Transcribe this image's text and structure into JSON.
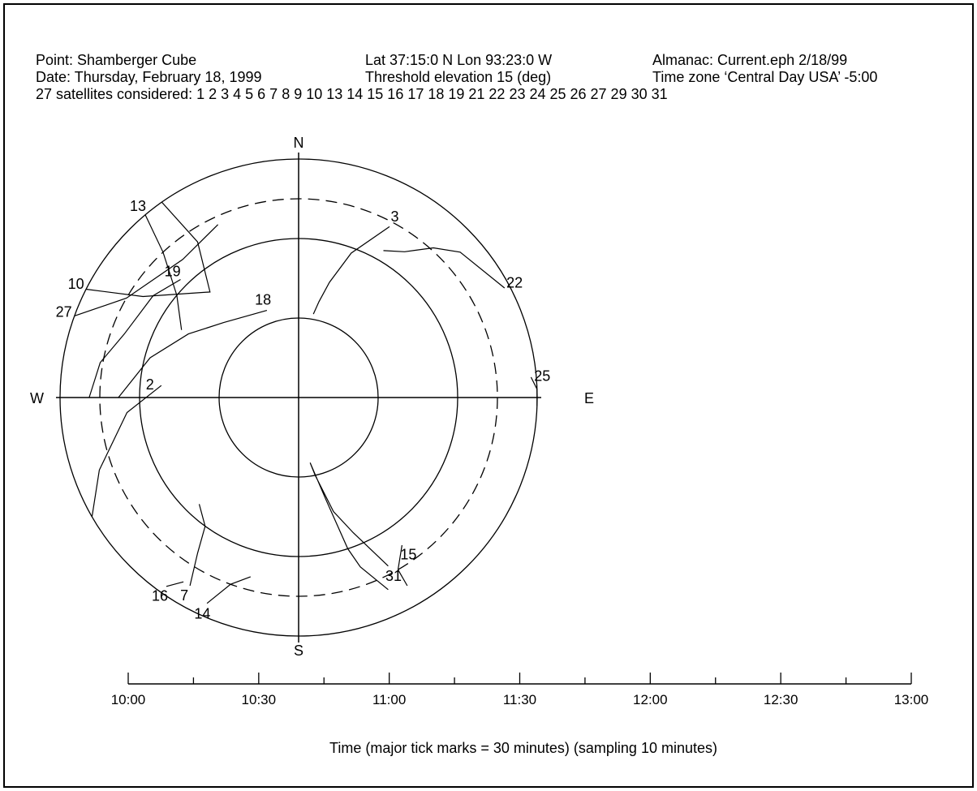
{
  "header": {
    "point": "Point: Shamberger Cube",
    "latlon": "Lat 37:15:0 N Lon 93:23:0 W",
    "almanac": "Almanac: Current.eph 2/18/99",
    "date": "Date: Thursday, February 18, 1999",
    "threshold": "Threshold elevation 15 (deg)",
    "timezone": "Time zone ‘Central Day USA’ -5:00",
    "satellites": "27 satellites considered: 1 2 3 4 5 6 7 8 9 10 13 14 15 16 17 18 19 21 22 23 24 25 26 27 29 30 31"
  },
  "chart_data": [
    {
      "type": "polar-skyplot",
      "directions": {
        "north": "N",
        "south": "S",
        "west": "W",
        "east": "E"
      },
      "elevation_rings": [
        0,
        30,
        60
      ],
      "threshold_ring_deg": 15,
      "satellites": [
        {
          "label": "3",
          "path": [
            [
              28,
              17
            ],
            [
              20,
              32
            ],
            [
              15,
              45
            ],
            [
              12,
              53
            ],
            [
              10,
              58
            ]
          ]
        },
        {
          "label": "22",
          "path": [
            [
              62,
              2
            ],
            [
              48,
              8
            ],
            [
              42,
              14
            ],
            [
              36,
              22
            ],
            [
              30,
              26
            ]
          ]
        },
        {
          "label": "31",
          "path": [
            [
              152,
              18
            ],
            [
              158,
              35
            ],
            [
              163,
              45
            ],
            [
              168,
              60
            ],
            [
              170,
              65
            ],
            [
              165,
              50
            ],
            [
              162,
              30
            ],
            [
              160,
              22
            ],
            [
              155,
              10
            ]
          ]
        },
        {
          "label": "25",
          "path": [
            [
              85,
              2
            ],
            [
              88,
              0
            ],
            [
              92,
              0
            ]
          ]
        },
        {
          "label": "15",
          "path": [
            [
              145,
              22
            ],
            [
              150,
              15
            ],
            [
              150,
              8
            ]
          ]
        },
        {
          "label": "18",
          "path": [
            [
              340,
              55
            ],
            [
              315,
              50
            ],
            [
              300,
              42
            ],
            [
              285,
              32
            ],
            [
              270,
              22
            ]
          ]
        },
        {
          "label": "14",
          "path": [
            [
              204,
              5
            ],
            [
              200,
              15
            ],
            [
              195,
              20
            ]
          ]
        },
        {
          "label": "7",
          "path": [
            [
              210,
              8
            ],
            [
              213,
              20
            ],
            [
              216,
              30
            ],
            [
              223,
              35
            ]
          ]
        },
        {
          "label": "16",
          "path": [
            [
              215,
              3
            ],
            [
              212,
              8
            ]
          ]
        },
        {
          "label": "2",
          "path": [
            [
              275,
              38
            ],
            [
              265,
              25
            ],
            [
              250,
              10
            ],
            [
              240,
              0
            ]
          ]
        },
        {
          "label": "19",
          "path": [
            [
              315,
              27
            ],
            [
              305,
              23
            ],
            [
              290,
              20
            ],
            [
              280,
              14
            ],
            [
              270,
              11
            ]
          ]
        },
        {
          "label": "13",
          "path": [
            [
              320,
              0
            ],
            [
              317,
              15
            ],
            [
              310,
              30
            ],
            [
              300,
              39
            ]
          ]
        },
        {
          "label": "27",
          "path": [
            [
              290,
              0
            ],
            [
              300,
              15
            ],
            [
              320,
              22
            ],
            [
              335,
              18
            ]
          ]
        },
        {
          "label": "10",
          "path": [
            [
              297,
              0
            ],
            [
              303,
              20
            ],
            [
              320,
              38
            ],
            [
              327,
              20
            ],
            [
              325,
              0
            ]
          ]
        }
      ]
    },
    {
      "type": "timeline",
      "xlabel": "Time (major tick marks = 30 minutes) (sampling 10 minutes)",
      "tick_labels": [
        "10:00",
        "10:30",
        "11:00",
        "11:30",
        "12:00",
        "12:30",
        "13:00"
      ],
      "xlim_minutes": [
        0,
        180
      ],
      "major_tick_interval_minutes": 30,
      "minor_tick_interval_minutes": 15
    }
  ]
}
